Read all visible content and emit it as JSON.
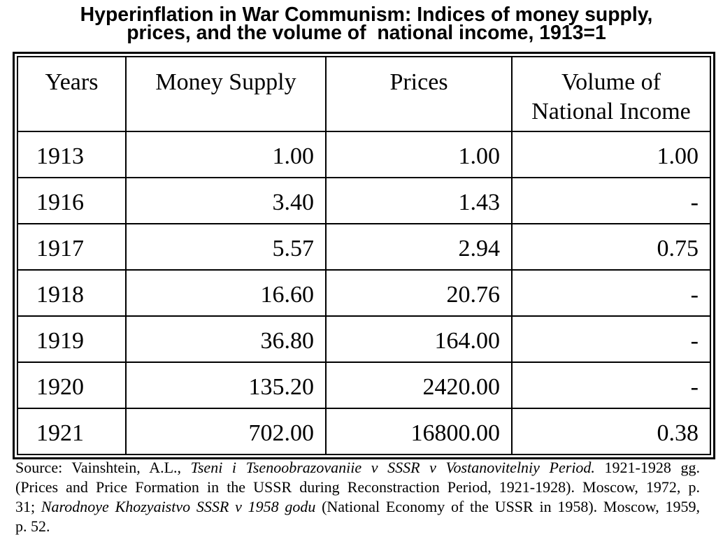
{
  "chart_data": {
    "type": "table",
    "title": "Hyperinflation in War Communism: Indices of money supply, prices, and the volume of  national income, 1913=1",
    "columns": [
      "Years",
      "Money Supply",
      "Prices",
      "Volume of National Income"
    ],
    "rows": [
      [
        "1913",
        "1.00",
        "1.00",
        "1.00"
      ],
      [
        "1916",
        "3.40",
        "1.43",
        "-"
      ],
      [
        "1917",
        "5.57",
        "2.94",
        "0.75"
      ],
      [
        "1918",
        "16.60",
        "20.76",
        "-"
      ],
      [
        "1919",
        "36.80",
        "164.00",
        "-"
      ],
      [
        "1920",
        "135.20",
        "2420.00",
        "-"
      ],
      [
        "1921",
        "702.00",
        "16800.00",
        "0.38"
      ]
    ]
  },
  "source": {
    "line1": [
      "Source: Vainshtein, A.L., ",
      "Tseni i Tsenoobrazovaniie v SSSR v Vostanovitelniy Period.",
      " 1921-1928 gg."
    ],
    "line2": [
      "(Prices and Price Formation in the USSR during Reconstraction Period, 1921-1928). Moscow, 1972, p."
    ],
    "line3": [
      "31; ",
      "Narodnoye Khozyaistvo SSSR v 1958 godu",
      " (National Economy of the USSR in 1958). Moscow, 1959,"
    ],
    "line4": [
      "p. 52."
    ]
  }
}
